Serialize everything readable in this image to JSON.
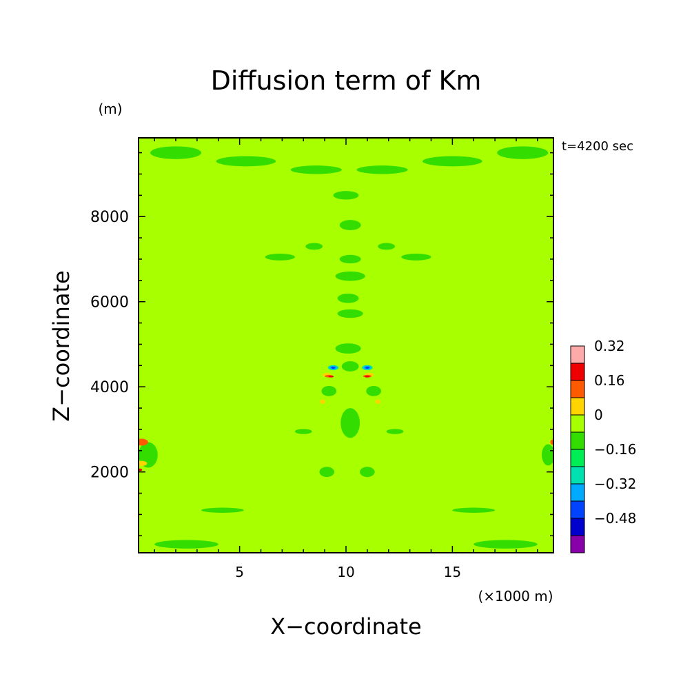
{
  "chart_data": {
    "type": "heatmap",
    "title": "Diffusion term of Km",
    "xlabel": "X−coordinate",
    "ylabel": "Z−coordinate",
    "x_unit": "(×1000 m)",
    "y_unit": "(m)",
    "time_label": "t=4200 sec",
    "xlim": [
      0.25,
      19.75
    ],
    "ylim": [
      100,
      9850
    ],
    "x_ticks": [
      5,
      10,
      15
    ],
    "x_tick_labels": [
      "5",
      "10",
      "15"
    ],
    "y_ticks": [
      2000,
      4000,
      6000,
      8000
    ],
    "y_tick_labels": [
      "2000",
      "4000",
      "6000",
      "8000"
    ],
    "background_level": "0 to 0.08",
    "colorbar": {
      "colors": [
        "#8800aa",
        "#0000cc",
        "#0044ff",
        "#00aaff",
        "#00e0b0",
        "#00ee55",
        "#33dd00",
        "#a8ff00",
        "#ffd400",
        "#ff5a00",
        "#ee0000",
        "#ffaaaa"
      ],
      "labels": [
        "0.32",
        "0.16",
        "0",
        "−0.16",
        "−0.32",
        "−0.48"
      ],
      "label_values": [
        0.32,
        0.16,
        0,
        -0.16,
        -0.32,
        -0.48
      ]
    },
    "features": [
      {
        "level": "-0.08 to 0",
        "color": "#33dd00",
        "x": 10.2,
        "z": 3150,
        "rx": 0.45,
        "rz": 350
      },
      {
        "level": "-0.08 to 0",
        "color": "#33dd00",
        "x": 10.2,
        "z": 4480,
        "rx": 0.4,
        "rz": 120
      },
      {
        "level": "-0.08 to 0",
        "color": "#33dd00",
        "x": 10.1,
        "z": 4900,
        "rx": 0.6,
        "rz": 120
      },
      {
        "level": "-0.08 to 0",
        "color": "#33dd00",
        "x": 10.2,
        "z": 5720,
        "rx": 0.6,
        "rz": 100
      },
      {
        "level": "-0.08 to 0",
        "color": "#33dd00",
        "x": 10.1,
        "z": 6080,
        "rx": 0.5,
        "rz": 110
      },
      {
        "level": "-0.08 to 0",
        "color": "#33dd00",
        "x": 10.2,
        "z": 6600,
        "rx": 0.7,
        "rz": 110
      },
      {
        "level": "-0.08 to 0",
        "color": "#33dd00",
        "x": 10.2,
        "z": 7000,
        "rx": 0.5,
        "rz": 100
      },
      {
        "level": "-0.08 to 0",
        "color": "#33dd00",
        "x": 10.2,
        "z": 7800,
        "rx": 0.5,
        "rz": 120
      },
      {
        "level": "-0.08 to 0",
        "color": "#33dd00",
        "x": 10.0,
        "z": 8500,
        "rx": 0.6,
        "rz": 100
      },
      {
        "level": "-0.08 to 0",
        "color": "#33dd00",
        "x": 8.5,
        "z": 7300,
        "rx": 0.4,
        "rz": 80
      },
      {
        "level": "-0.08 to 0",
        "color": "#33dd00",
        "x": 11.9,
        "z": 7300,
        "rx": 0.4,
        "rz": 80
      },
      {
        "level": "-0.08 to 0",
        "color": "#33dd00",
        "x": 6.9,
        "z": 7050,
        "rx": 0.7,
        "rz": 80
      },
      {
        "level": "-0.08 to 0",
        "color": "#33dd00",
        "x": 13.3,
        "z": 7050,
        "rx": 0.7,
        "rz": 80
      },
      {
        "level": "-0.08 to 0",
        "color": "#33dd00",
        "x": 9.2,
        "z": 3900,
        "rx": 0.35,
        "rz": 120
      },
      {
        "level": "-0.08 to 0",
        "color": "#33dd00",
        "x": 11.3,
        "z": 3900,
        "rx": 0.35,
        "rz": 120
      },
      {
        "level": "-0.08 to 0",
        "color": "#33dd00",
        "x": 9.1,
        "z": 2000,
        "rx": 0.35,
        "rz": 120
      },
      {
        "level": "-0.08 to 0",
        "color": "#33dd00",
        "x": 11.0,
        "z": 2000,
        "rx": 0.35,
        "rz": 120
      },
      {
        "level": "-0.08 to 0",
        "color": "#33dd00",
        "x": 8.0,
        "z": 2950,
        "rx": 0.4,
        "rz": 60
      },
      {
        "level": "-0.08 to 0",
        "color": "#33dd00",
        "x": 12.3,
        "z": 2950,
        "rx": 0.4,
        "rz": 60
      },
      {
        "level": "-0.08 to 0",
        "color": "#33dd00",
        "x": 5.3,
        "z": 9300,
        "rx": 1.4,
        "rz": 120
      },
      {
        "level": "-0.08 to 0",
        "color": "#33dd00",
        "x": 15.0,
        "z": 9300,
        "rx": 1.4,
        "rz": 120
      },
      {
        "level": "-0.08 to 0",
        "color": "#33dd00",
        "x": 2.0,
        "z": 9500,
        "rx": 1.2,
        "rz": 150
      },
      {
        "level": "-0.08 to 0",
        "color": "#33dd00",
        "x": 18.3,
        "z": 9500,
        "rx": 1.2,
        "rz": 150
      },
      {
        "level": "-0.08 to 0",
        "color": "#33dd00",
        "x": 8.6,
        "z": 9100,
        "rx": 1.2,
        "rz": 100
      },
      {
        "level": "-0.08 to 0",
        "color": "#33dd00",
        "x": 11.7,
        "z": 9100,
        "rx": 1.2,
        "rz": 100
      },
      {
        "level": "-0.08 to 0",
        "color": "#33dd00",
        "x": 4.2,
        "z": 1100,
        "rx": 1.0,
        "rz": 60
      },
      {
        "level": "-0.08 to 0",
        "color": "#33dd00",
        "x": 16.0,
        "z": 1100,
        "rx": 1.0,
        "rz": 60
      },
      {
        "level": "-0.08 to 0",
        "color": "#33dd00",
        "x": 2.5,
        "z": 300,
        "rx": 1.5,
        "rz": 100
      },
      {
        "level": "-0.08 to 0",
        "color": "#33dd00",
        "x": 17.5,
        "z": 300,
        "rx": 1.5,
        "rz": 100
      },
      {
        "level": "-0.08 to 0",
        "color": "#33dd00",
        "x": 0.7,
        "z": 2400,
        "rx": 0.45,
        "rz": 300
      },
      {
        "level": "-0.08 to 0",
        "color": "#33dd00",
        "x": 19.5,
        "z": 2400,
        "rx": 0.3,
        "rz": 250
      },
      {
        "level": "0.08 to 0.16",
        "color": "#ffd400",
        "x": 9.1,
        "z": 4280,
        "rx": 0.2,
        "rz": 50
      },
      {
        "level": "0.08 to 0.16",
        "color": "#ffd400",
        "x": 11.1,
        "z": 4280,
        "rx": 0.2,
        "rz": 50
      },
      {
        "level": "0.08 to 0.16",
        "color": "#ffd400",
        "x": 8.9,
        "z": 3650,
        "rx": 0.12,
        "rz": 50
      },
      {
        "level": "0.08 to 0.16",
        "color": "#ffd400",
        "x": 11.5,
        "z": 3650,
        "rx": 0.12,
        "rz": 50
      },
      {
        "level": "0.08 to 0.16",
        "color": "#ffd400",
        "x": 0.4,
        "z": 2200,
        "rx": 0.25,
        "rz": 60
      },
      {
        "level": "0.16 to 0.24",
        "color": "#ff5a00",
        "x": 9.2,
        "z": 4250,
        "rx": 0.2,
        "rz": 30
      },
      {
        "level": "0.16 to 0.24",
        "color": "#ff5a00",
        "x": 11.0,
        "z": 4250,
        "rx": 0.2,
        "rz": 30
      },
      {
        "level": "0.16 to 0.24",
        "color": "#ff5a00",
        "x": 0.4,
        "z": 2700,
        "rx": 0.3,
        "rz": 80
      },
      {
        "level": "0.16 to 0.24",
        "color": "#ff5a00",
        "x": 19.7,
        "z": 2700,
        "rx": 0.1,
        "rz": 60
      },
      {
        "level": "0.24 to 0.32",
        "color": "#ee0000",
        "x": 9.3,
        "z": 4240,
        "rx": 0.12,
        "rz": 20
      },
      {
        "level": "0.24 to 0.32",
        "color": "#ee0000",
        "x": 11.0,
        "z": 4240,
        "rx": 0.12,
        "rz": 20
      },
      {
        "level": "0.24 to 0.32",
        "color": "#ee0000",
        "x": 0.3,
        "z": 2050,
        "rx": 0.12,
        "rz": 30
      },
      {
        "level": "-0.24 to -0.16",
        "color": "#00e0b0",
        "x": 9.4,
        "z": 4450,
        "rx": 0.25,
        "rz": 60
      },
      {
        "level": "-0.24 to -0.16",
        "color": "#00e0b0",
        "x": 11.0,
        "z": 4450,
        "rx": 0.25,
        "rz": 60
      },
      {
        "level": "-0.32 to -0.24",
        "color": "#00aaff",
        "x": 9.4,
        "z": 4450,
        "rx": 0.17,
        "rz": 40
      },
      {
        "level": "-0.32 to -0.24",
        "color": "#00aaff",
        "x": 11.0,
        "z": 4450,
        "rx": 0.17,
        "rz": 40
      },
      {
        "level": "-0.40 to -0.32",
        "color": "#0044ff",
        "x": 9.4,
        "z": 4450,
        "rx": 0.1,
        "rz": 25
      },
      {
        "level": "-0.40 to -0.32",
        "color": "#0044ff",
        "x": 11.0,
        "z": 4450,
        "rx": 0.1,
        "rz": 25
      }
    ]
  }
}
